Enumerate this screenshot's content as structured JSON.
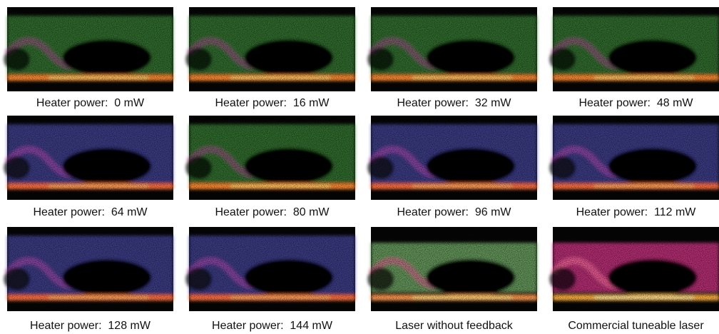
{
  "panels": [
    {
      "caption": "Heater power:  0 mW"
    },
    {
      "caption": "Heater power:  16 mW"
    },
    {
      "caption": "Heater power:  32 mW"
    },
    {
      "caption": "Heater power:  48 mW"
    },
    {
      "caption": "Heater power:  64 mW"
    },
    {
      "caption": "Heater power:  80 mW"
    },
    {
      "caption": "Heater power:  96 mW"
    },
    {
      "caption": "Heater power:  112 mW"
    },
    {
      "caption": "Heater power:  128 mW"
    },
    {
      "caption": "Heater power:  144 mW"
    },
    {
      "caption": "Laser without feedback"
    },
    {
      "caption": "Commercial tuneable laser"
    }
  ]
}
